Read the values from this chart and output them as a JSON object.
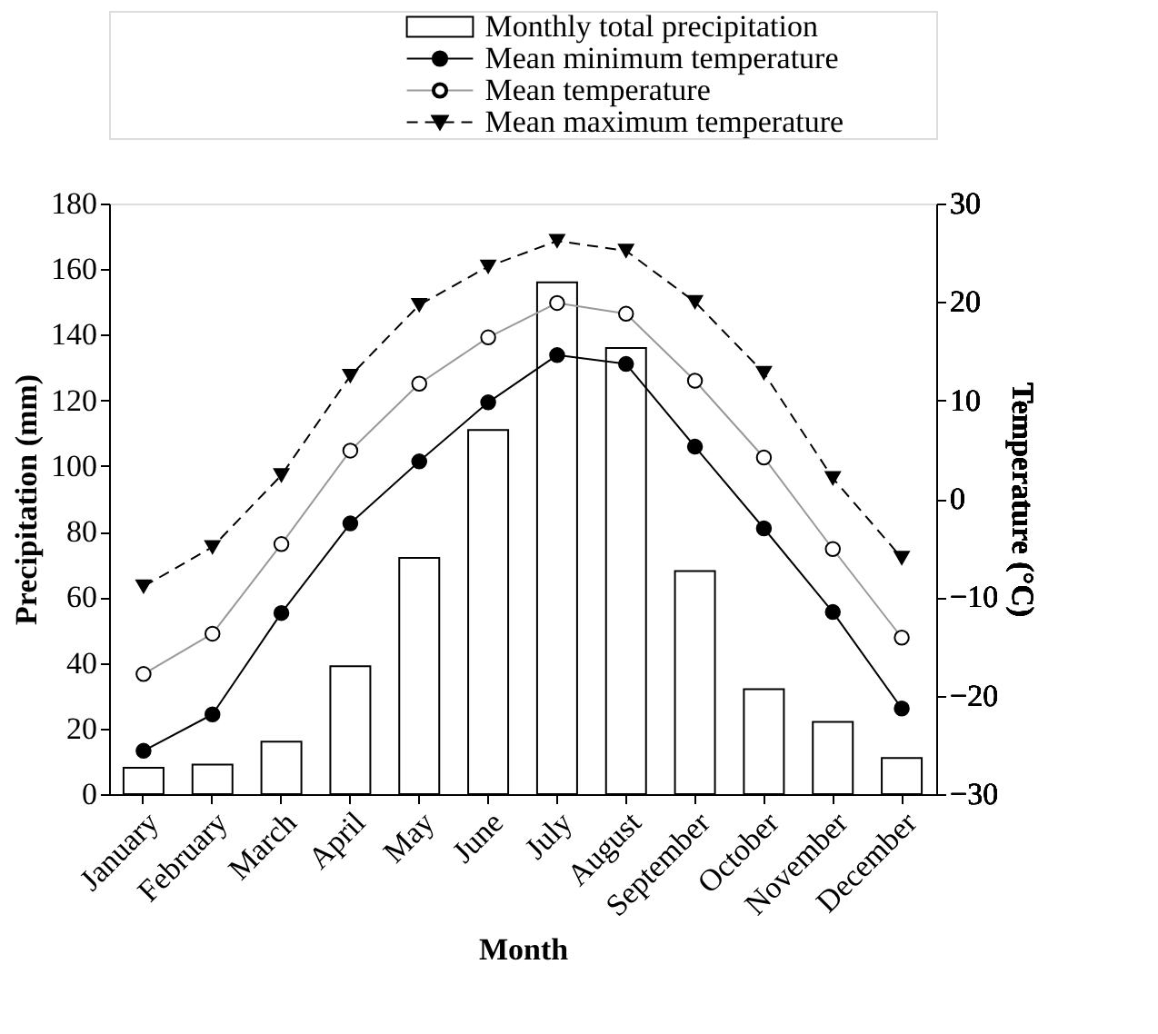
{
  "chart_data": {
    "type": "bar",
    "xlabel": "Month",
    "ylabel": "Precipitation (mm)",
    "y2label": "Temperature (°C)",
    "categories": [
      "January",
      "February",
      "March",
      "April",
      "May",
      "June",
      "July",
      "August",
      "September",
      "October",
      "November",
      "December"
    ],
    "series": [
      {
        "name": "Monthly total precipitation",
        "color": "#ffffff",
        "values": [
          8,
          9,
          16,
          39,
          72,
          111,
          156,
          136,
          68,
          32,
          22,
          11
        ]
      },
      {
        "name": "Mean minimum temperature",
        "type": "line",
        "axis": "y2",
        "color": "#000000",
        "marker": "circle",
        "line_style": "solid",
        "values": [
          -25.6,
          -21.9,
          -11.6,
          -2.5,
          3.8,
          9.8,
          14.6,
          13.7,
          5.3,
          -3.0,
          -11.5,
          -21.3
        ]
      },
      {
        "name": "Mean temperature",
        "type": "line",
        "axis": "y2",
        "color": "#999999",
        "marker": "circle",
        "line_style": "solid",
        "values": [
          -17.8,
          -13.7,
          -4.6,
          4.9,
          11.7,
          16.4,
          19.9,
          18.8,
          12.0,
          4.2,
          -5.1,
          -14.1
        ]
      },
      {
        "name": "Mean maximum temperature",
        "type": "line",
        "axis": "y2",
        "color": "#000000",
        "marker": "triangle",
        "line_style": "dashed",
        "values": [
          -8.9,
          -4.9,
          2.4,
          12.5,
          19.7,
          23.6,
          26.2,
          25.2,
          20.0,
          12.8,
          2.1,
          -6.0
        ]
      }
    ],
    "ylim": [
      0,
      180
    ],
    "yticks": [
      0,
      20,
      40,
      60,
      80,
      100,
      120,
      140,
      160,
      180
    ],
    "y2lim": [
      -30,
      30
    ],
    "y2ticks": [
      -30,
      -20,
      -10,
      0,
      10,
      20,
      30
    ],
    "grid": false,
    "legend": "top right"
  }
}
